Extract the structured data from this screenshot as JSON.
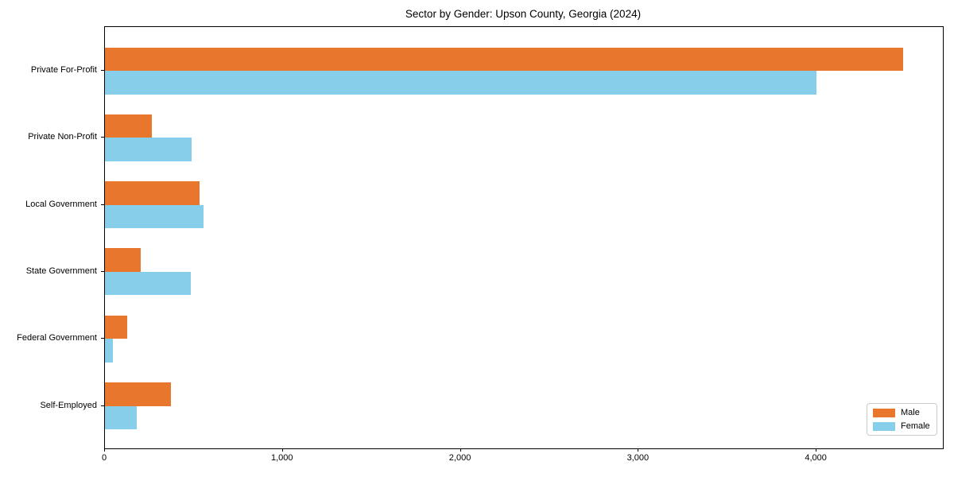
{
  "title": "Sector by Gender: Upson County, Georgia (2024)",
  "chart_data": {
    "type": "bar",
    "orientation": "horizontal",
    "title": "Sector by Gender: Upson County, Georgia (2024)",
    "categories": [
      "Private For-Profit",
      "Private Non-Profit",
      "Local Government",
      "State Government",
      "Federal Government",
      "Self-Employed"
    ],
    "series": [
      {
        "name": "Male",
        "color": "#e8762d",
        "values": [
          4487,
          265,
          530,
          200,
          126,
          371
        ]
      },
      {
        "name": "Female",
        "color": "#87ceeb",
        "values": [
          4000,
          488,
          556,
          481,
          44,
          177
        ]
      }
    ],
    "xlim": [
      0,
      4710
    ],
    "x_ticks": [
      0,
      1000,
      2000,
      3000,
      4000
    ],
    "x_tick_labels": [
      "0",
      "1,000",
      "2,000",
      "3,000",
      "4,000"
    ],
    "xlabel": "",
    "ylabel": "",
    "grid": false,
    "legend_position": "lower right"
  }
}
